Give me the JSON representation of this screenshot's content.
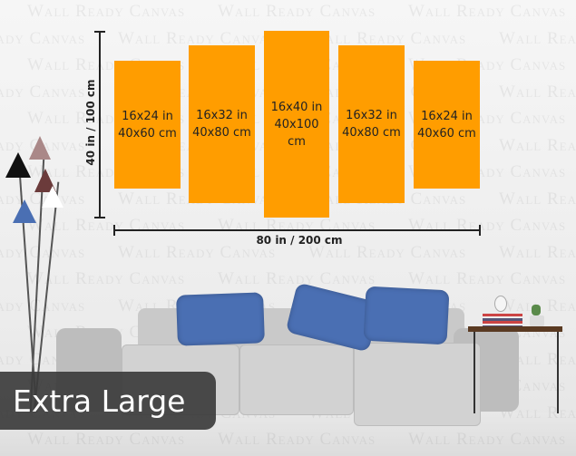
{
  "watermark": "Wall Ready Canvas",
  "panels": [
    {
      "in": "16x24 in",
      "cm": "40x60 cm"
    },
    {
      "in": "16x32 in",
      "cm": "40x80 cm"
    },
    {
      "in": "16x40 in",
      "cm": "40x100 cm"
    },
    {
      "in": "16x32 in",
      "cm": "40x80 cm"
    },
    {
      "in": "16x24 in",
      "cm": "40x60 cm"
    }
  ],
  "panel_color": "#ff9d00",
  "height_label": "40 in / 100 cm",
  "width_label": "80 in / 200 cm",
  "size_badge": "Extra Large"
}
